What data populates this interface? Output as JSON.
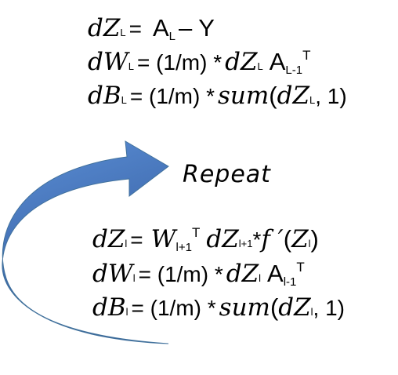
{
  "output_layer": {
    "dz": {
      "var": "dZ",
      "idx": "L",
      "op": "=",
      "a": "A",
      "a_sub": "L",
      "rest": "– Y"
    },
    "dw": {
      "var": "dW",
      "idx": "L",
      "op": "= (1/m) *",
      "dz": "dZ",
      "dz_idx": "L",
      "a": "A",
      "a_sub": "L-1",
      "t": "T"
    },
    "db": {
      "var": "dB",
      "idx": "L",
      "op": "= (1/m) *",
      "fn": "sum",
      "open": "(",
      "dz": "dZ",
      "dz_idx": "L",
      "close": ", 1)"
    }
  },
  "repeat_label": "Repeat",
  "hidden_layer": {
    "dz": {
      "var": "dZ",
      "idx": "l",
      "op": "=",
      "w": "W",
      "w_sub": "l+1",
      "t": "T",
      "dz2": "dZ",
      "dz2_idx": "l+1",
      "star": "*",
      "f": "f ′",
      "open": "(",
      "z": "Z",
      "z_idx": "l",
      "close": ")"
    },
    "dw": {
      "var": "dW",
      "idx": "l",
      "op": "= (1/m) *",
      "dz": "dZ",
      "dz_idx": "l",
      "a": "A",
      "a_sub": "l-1",
      "t": "T"
    },
    "db": {
      "var": "dB",
      "idx": "l",
      "op": "= (1/m) *",
      "fn": "sum",
      "open": "(",
      "dz": "dZ",
      "dz_idx": "l",
      "close": ", 1)"
    }
  },
  "colors": {
    "arrow_light": "#5b8fd6",
    "arrow_dark": "#2f5597",
    "text": "#000000"
  }
}
